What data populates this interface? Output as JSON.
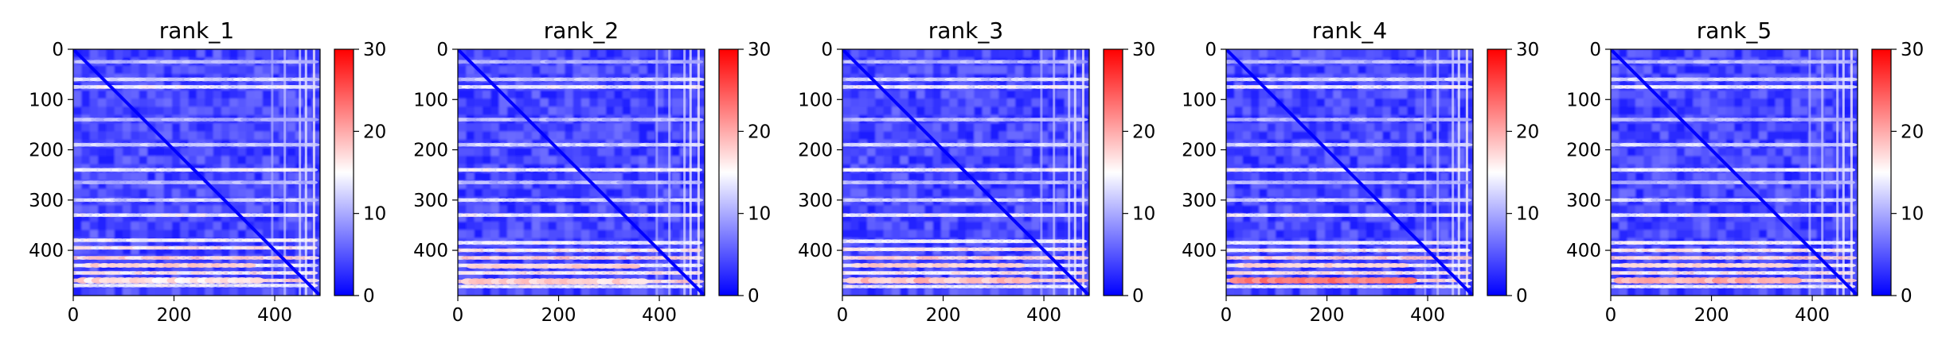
{
  "chart_data": [
    {
      "type": "heatmap",
      "title": "rank_1",
      "xlim": [
        0,
        490
      ],
      "ylim": [
        490,
        0
      ],
      "xticks": [
        0,
        200,
        400
      ],
      "yticks": [
        0,
        100,
        200,
        300,
        400
      ],
      "colorbar": {
        "min": 0,
        "max": 30,
        "ticks": [
          0,
          10,
          20,
          30
        ],
        "colormap": "bwr"
      },
      "bright_rows": [
        25,
        60,
        75,
        140,
        190,
        240,
        265,
        300,
        330,
        380,
        395,
        415,
        430,
        445,
        460,
        470
      ],
      "hot_row": 460,
      "hot_level": 0.62
    },
    {
      "type": "heatmap",
      "title": "rank_2",
      "xlim": [
        0,
        490
      ],
      "ylim": [
        490,
        0
      ],
      "xticks": [
        0,
        200,
        400
      ],
      "yticks": [
        0,
        100,
        200,
        300,
        400
      ],
      "colorbar": {
        "min": 0,
        "max": 30,
        "ticks": [
          0,
          10,
          20,
          30
        ],
        "colormap": "bwr"
      },
      "bright_rows": [
        25,
        60,
        75,
        140,
        190,
        240,
        265,
        300,
        330,
        385,
        400,
        415,
        430,
        445,
        462,
        472
      ],
      "hot_row": 462,
      "hot_level": 0.64
    },
    {
      "type": "heatmap",
      "title": "rank_3",
      "xlim": [
        0,
        490
      ],
      "ylim": [
        490,
        0
      ],
      "xticks": [
        0,
        200,
        400
      ],
      "yticks": [
        0,
        100,
        200,
        300,
        400
      ],
      "colorbar": {
        "min": 0,
        "max": 30,
        "ticks": [
          0,
          10,
          20,
          30
        ],
        "colormap": "bwr"
      },
      "bright_rows": [
        25,
        60,
        75,
        140,
        190,
        240,
        265,
        300,
        330,
        382,
        398,
        415,
        430,
        445,
        460,
        472
      ],
      "hot_row": 460,
      "hot_level": 0.68
    },
    {
      "type": "heatmap",
      "title": "rank_4",
      "xlim": [
        0,
        490
      ],
      "ylim": [
        490,
        0
      ],
      "xticks": [
        0,
        200,
        400
      ],
      "yticks": [
        0,
        100,
        200,
        300,
        400
      ],
      "colorbar": {
        "min": 0,
        "max": 30,
        "ticks": [
          0,
          10,
          20,
          30
        ],
        "colormap": "bwr"
      },
      "bright_rows": [
        25,
        60,
        75,
        140,
        190,
        240,
        265,
        300,
        330,
        385,
        400,
        415,
        430,
        445,
        460,
        472
      ],
      "hot_row": 460,
      "hot_level": 0.82
    },
    {
      "type": "heatmap",
      "title": "rank_5",
      "xlim": [
        0,
        490
      ],
      "ylim": [
        490,
        0
      ],
      "xticks": [
        0,
        200,
        400
      ],
      "yticks": [
        0,
        100,
        200,
        300,
        400
      ],
      "colorbar": {
        "min": 0,
        "max": 30,
        "ticks": [
          0,
          10,
          20,
          30
        ],
        "colormap": "bwr"
      },
      "bright_rows": [
        25,
        60,
        75,
        140,
        190,
        240,
        265,
        300,
        330,
        385,
        400,
        415,
        430,
        445,
        460,
        472
      ],
      "hot_row": 460,
      "hot_level": 0.72
    }
  ]
}
